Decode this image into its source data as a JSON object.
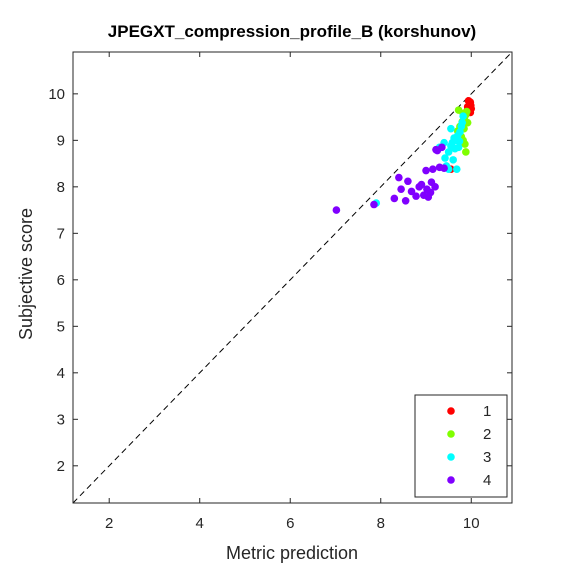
{
  "chart_data": {
    "type": "scatter",
    "title": "JPEGXT_compression_profile_B (korshunov)",
    "xlabel": "Metric prediction",
    "ylabel": "Subjective score",
    "xlim": [
      1.2,
      10.9
    ],
    "ylim": [
      1.2,
      10.9
    ],
    "xticks": [
      "2",
      "4",
      "6",
      "8",
      "10"
    ],
    "yticks": [
      "2",
      "3",
      "4",
      "5",
      "6",
      "7",
      "8",
      "9",
      "10"
    ],
    "grid": false,
    "box": true,
    "reference_line": {
      "x": [
        1.2,
        10.9
      ],
      "y": [
        1.2,
        10.9
      ],
      "style": "dashed",
      "color": "#000000"
    },
    "legend": {
      "position": "bottom-right"
    },
    "series": [
      {
        "name": "1",
        "color": "#ff0000",
        "points": [
          [
            9.94,
            9.85
          ],
          [
            9.98,
            9.82
          ],
          [
            9.96,
            9.78
          ],
          [
            9.99,
            9.75
          ],
          [
            9.92,
            9.72
          ],
          [
            9.97,
            9.7
          ],
          [
            10.0,
            9.68
          ],
          [
            9.95,
            9.65
          ],
          [
            9.9,
            9.62
          ],
          [
            9.98,
            9.6
          ],
          [
            9.55,
            8.38
          ]
        ]
      },
      {
        "name": "2",
        "color": "#80ff00",
        "points": [
          [
            9.72,
            9.65
          ],
          [
            9.9,
            9.62
          ],
          [
            9.82,
            9.58
          ],
          [
            9.88,
            9.55
          ],
          [
            9.85,
            9.45
          ],
          [
            9.8,
            9.4
          ],
          [
            9.92,
            9.38
          ],
          [
            9.75,
            9.3
          ],
          [
            9.84,
            9.25
          ],
          [
            9.7,
            9.2
          ],
          [
            9.78,
            9.08
          ],
          [
            9.82,
            9.0
          ],
          [
            9.86,
            8.92
          ],
          [
            9.76,
            8.95
          ],
          [
            9.88,
            8.75
          ]
        ]
      },
      {
        "name": "3",
        "color": "#00ffff",
        "points": [
          [
            9.82,
            9.52
          ],
          [
            9.8,
            9.38
          ],
          [
            9.78,
            9.3
          ],
          [
            9.55,
            9.25
          ],
          [
            9.75,
            9.18
          ],
          [
            9.7,
            9.1
          ],
          [
            9.62,
            9.05
          ],
          [
            9.68,
            9.0
          ],
          [
            9.74,
            8.98
          ],
          [
            9.58,
            8.95
          ],
          [
            9.4,
            8.95
          ],
          [
            9.3,
            8.85
          ],
          [
            9.55,
            8.88
          ],
          [
            9.72,
            8.85
          ],
          [
            9.64,
            8.82
          ],
          [
            9.5,
            8.75
          ],
          [
            9.42,
            8.62
          ],
          [
            9.6,
            8.58
          ],
          [
            9.45,
            8.45
          ],
          [
            9.68,
            8.38
          ],
          [
            9.5,
            8.38
          ],
          [
            7.9,
            7.65
          ]
        ]
      },
      {
        "name": "4",
        "color": "#8000ff",
        "points": [
          [
            7.02,
            7.5
          ],
          [
            7.85,
            7.62
          ],
          [
            8.3,
            7.75
          ],
          [
            8.45,
            7.95
          ],
          [
            8.55,
            7.7
          ],
          [
            8.68,
            7.9
          ],
          [
            8.78,
            7.8
          ],
          [
            8.85,
            8.0
          ],
          [
            8.95,
            7.82
          ],
          [
            9.02,
            7.95
          ],
          [
            9.1,
            7.88
          ],
          [
            9.05,
            7.78
          ],
          [
            8.9,
            8.05
          ],
          [
            9.12,
            8.1
          ],
          [
            9.2,
            8.0
          ],
          [
            8.4,
            8.2
          ],
          [
            8.6,
            8.12
          ],
          [
            9.0,
            8.35
          ],
          [
            9.15,
            8.38
          ],
          [
            9.3,
            8.42
          ],
          [
            9.25,
            8.78
          ],
          [
            9.4,
            8.4
          ],
          [
            9.35,
            8.85
          ],
          [
            9.22,
            8.8
          ]
        ]
      }
    ]
  }
}
